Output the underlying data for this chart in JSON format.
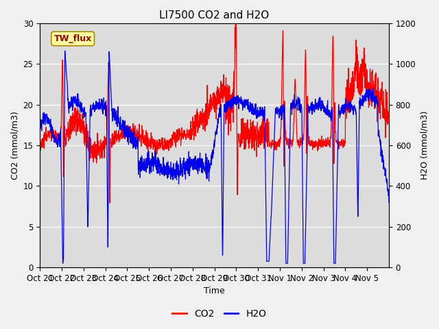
{
  "title": "LI7500 CO2 and H2O",
  "xlabel": "Time",
  "ylabel_left": "CO2 (mmol/m3)",
  "ylabel_right": "H2O (mmol/m3)",
  "ylim_left": [
    0,
    30
  ],
  "ylim_right": [
    0,
    1200
  ],
  "yticks_left": [
    0,
    5,
    10,
    15,
    20,
    25,
    30
  ],
  "yticks_right": [
    0,
    200,
    400,
    600,
    800,
    1000,
    1200
  ],
  "xtick_labels": [
    "Oct 21",
    "Oct 22",
    "Oct 23",
    "Oct 24",
    "Oct 25",
    "Oct 26",
    "Oct 27",
    "Oct 28",
    "Oct 29",
    "Oct 30",
    "Oct 31",
    "Nov 1",
    "Nov 2",
    "Nov 3",
    "Nov 4",
    "Nov 5"
  ],
  "co2_color": "#FF0000",
  "h2o_color": "#0000EE",
  "bg_color": "#DCDCDC",
  "fig_color": "#F0F0F0",
  "annotation_text": "TW_flux",
  "annotation_bg": "#FFFFA0",
  "annotation_border": "#AA8800",
  "legend_labels": [
    "CO2",
    "H2O"
  ],
  "title_fontsize": 11,
  "axis_label_fontsize": 9,
  "tick_fontsize": 8.5,
  "line_width": 0.9
}
